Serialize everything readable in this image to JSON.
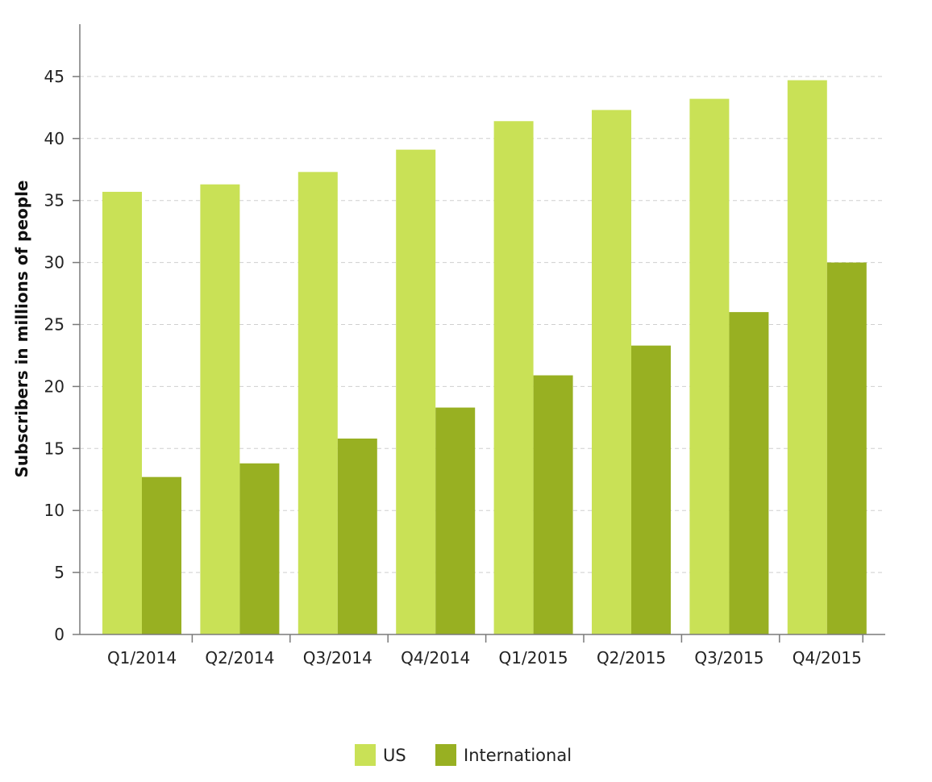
{
  "chart_data": {
    "type": "bar",
    "title": "",
    "xlabel": "",
    "ylabel": "Subscribers in millions of people",
    "categories": [
      "Q1/2014",
      "Q2/2014",
      "Q3/2014",
      "Q4/2014",
      "Q1/2015",
      "Q2/2015",
      "Q3/2015",
      "Q4/2015"
    ],
    "series": [
      {
        "name": "US",
        "color": "#c9e156",
        "values": [
          35.7,
          36.3,
          37.3,
          39.1,
          41.4,
          42.3,
          43.2,
          44.7
        ]
      },
      {
        "name": "International",
        "color": "#98b022",
        "values": [
          12.7,
          13.8,
          15.8,
          18.3,
          20.9,
          23.3,
          26.0,
          30.0
        ]
      }
    ],
    "ylim": [
      0,
      49
    ],
    "yticks": [
      0,
      5,
      10,
      15,
      20,
      25,
      30,
      35,
      40,
      45
    ],
    "grid": true,
    "legend": "bottom-center"
  }
}
